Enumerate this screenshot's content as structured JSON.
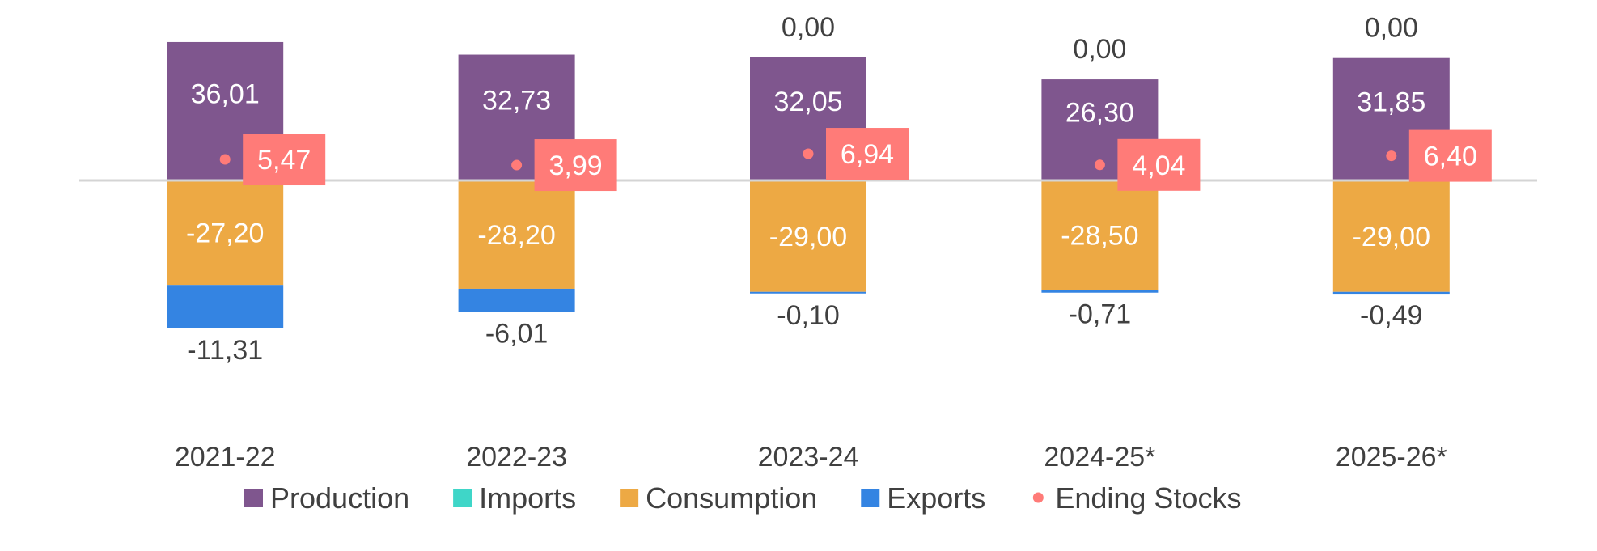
{
  "chart_data": {
    "type": "bar",
    "stacked": true,
    "categories": [
      "2021-22",
      "2022-23",
      "2023-24",
      "2024-25*",
      "2025-26*"
    ],
    "series": [
      {
        "name": "Production",
        "kind": "bar",
        "color": "#7F568E",
        "values": [
          36.01,
          32.73,
          32.05,
          26.3,
          31.85
        ],
        "labels": [
          "36,01",
          "32,73",
          "32,05",
          "26,30",
          "31,85"
        ]
      },
      {
        "name": "Imports",
        "kind": "bar",
        "color": "#3FD6C8",
        "values": [
          0,
          0,
          0.0,
          0.0,
          0.0
        ],
        "labels": [
          "",
          "",
          "0,00",
          "0,00",
          "0,00"
        ]
      },
      {
        "name": "Consumption",
        "kind": "bar",
        "color": "#EDA944",
        "values": [
          -27.2,
          -28.2,
          -29.0,
          -28.5,
          -29.0
        ],
        "labels": [
          "-27,20",
          "-28,20",
          "-29,00",
          "-28,50",
          "-29,00"
        ]
      },
      {
        "name": "Exports",
        "kind": "bar",
        "color": "#3484E2",
        "values": [
          -11.31,
          -6.01,
          -0.1,
          -0.71,
          -0.49
        ],
        "labels": [
          "-11,31",
          "-6,01",
          "-0,10",
          "-0,71",
          "-0,49"
        ]
      },
      {
        "name": "Ending Stocks",
        "kind": "point",
        "color": "#FF7B78",
        "values": [
          5.47,
          3.99,
          6.94,
          4.04,
          6.4
        ],
        "labels": [
          "5,47",
          "3,99",
          "6,94",
          "4,04",
          "6,40"
        ]
      }
    ],
    "legend_position": "bottom",
    "grid": false,
    "colors": {
      "axis": "#D4D4D4",
      "text": "#404040",
      "label_light": "#FFFFFF"
    }
  }
}
